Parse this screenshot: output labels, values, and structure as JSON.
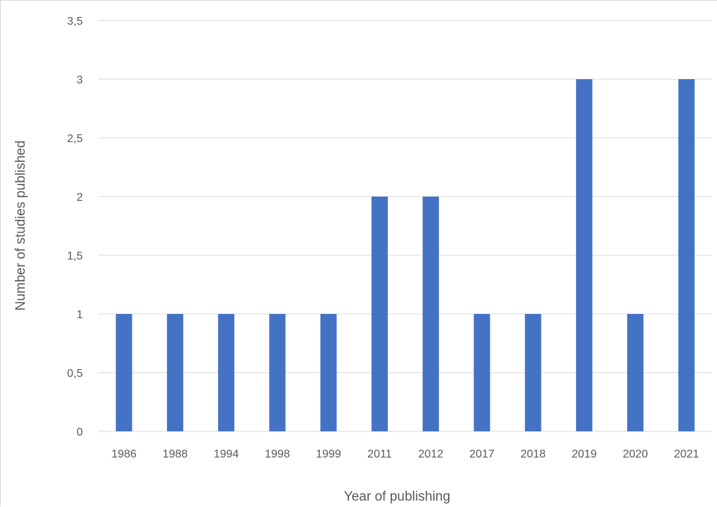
{
  "chart_data": {
    "type": "bar",
    "title": "",
    "xlabel": "Year of publishing",
    "ylabel": "Number of studies published",
    "categories": [
      "1986",
      "1988",
      "1994",
      "1998",
      "1999",
      "2011",
      "2012",
      "2017",
      "2018",
      "2019",
      "2020",
      "2021"
    ],
    "values": [
      1,
      1,
      1,
      1,
      1,
      2,
      2,
      1,
      1,
      3,
      1,
      3
    ],
    "ylim": [
      0,
      3.5
    ],
    "yticks": [
      "0",
      "0,5",
      "1",
      "1,5",
      "2",
      "2,5",
      "3",
      "3,5"
    ],
    "grid": true,
    "legend": "none",
    "bar_color": "#4472c4"
  }
}
